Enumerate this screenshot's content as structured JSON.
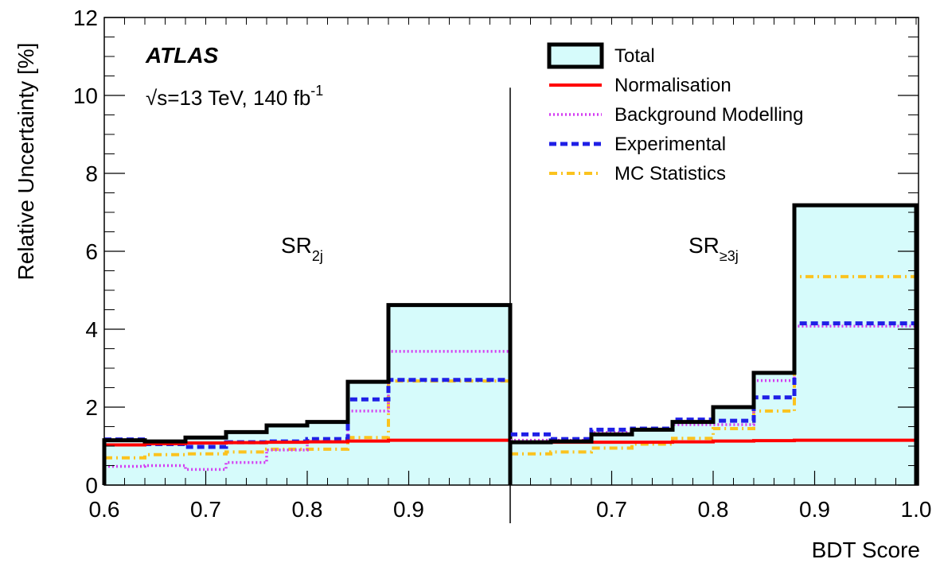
{
  "chart_data": {
    "type": "histogram",
    "experiment": "ATLAS",
    "energy_label": "√s=13 TeV, 140 fb",
    "energy_sup": "-1",
    "xlabel": "BDT Score",
    "ylabel": "Relative Uncertainty [%]",
    "ylim": [
      0,
      12
    ],
    "yticks": [
      "0",
      "2",
      "4",
      "6",
      "8",
      "10",
      "12"
    ],
    "grid": false,
    "legend_position": "top-right",
    "regions": [
      {
        "label": "SR",
        "sub": "2j",
        "xticks": [
          "0.6",
          "0.7",
          "0.8",
          "0.9"
        ],
        "bin_edges": [
          0.6,
          0.64,
          0.68,
          0.72,
          0.76,
          0.8,
          0.84,
          0.88,
          1.0
        ],
        "series": {
          "total": [
            1.15,
            1.12,
            1.22,
            1.36,
            1.53,
            1.62,
            2.65,
            4.62
          ],
          "normalisation": [
            1.03,
            1.06,
            1.08,
            1.09,
            1.1,
            1.11,
            1.13,
            1.15
          ],
          "background_modelling": [
            0.48,
            0.5,
            0.4,
            0.58,
            0.9,
            1.12,
            1.9,
            3.43
          ],
          "experimental": [
            1.17,
            1.05,
            0.98,
            1.1,
            1.12,
            1.18,
            2.2,
            2.7
          ],
          "mc_statistics": [
            0.7,
            0.78,
            0.8,
            0.85,
            0.92,
            0.92,
            1.22,
            2.67
          ]
        }
      },
      {
        "label": "SR",
        "sub": "≥3j",
        "xticks": [
          "0.7",
          "0.8",
          "0.9",
          "1.0"
        ],
        "bin_edges": [
          0.6,
          0.64,
          0.68,
          0.72,
          0.76,
          0.8,
          0.84,
          0.88,
          1.0
        ],
        "series": {
          "total": [
            1.1,
            1.12,
            1.3,
            1.42,
            1.62,
            2.0,
            2.88,
            7.18
          ],
          "normalisation": [
            1.1,
            1.1,
            1.1,
            1.1,
            1.11,
            1.13,
            1.14,
            1.15
          ],
          "background_modelling": [
            1.15,
            1.15,
            1.35,
            1.42,
            1.55,
            1.55,
            2.68,
            4.08
          ],
          "experimental": [
            1.3,
            1.18,
            1.42,
            1.45,
            1.68,
            1.65,
            2.25,
            4.15
          ],
          "mc_statistics": [
            0.8,
            0.85,
            0.95,
            1.05,
            1.2,
            1.45,
            1.9,
            5.35
          ]
        }
      }
    ],
    "legend": [
      {
        "key": "total",
        "label": "Total",
        "color": "#000000",
        "fill": "#d6fbfb",
        "style": "box"
      },
      {
        "key": "normalisation",
        "label": "Normalisation",
        "color": "#ff0000",
        "style": "solid"
      },
      {
        "key": "background_modelling",
        "label": "Background Modelling",
        "color": "#d43bf2",
        "style": "dotted"
      },
      {
        "key": "experimental",
        "label": "Experimental",
        "color": "#1f1fe6",
        "style": "dashed"
      },
      {
        "key": "mc_statistics",
        "label": "MC Statistics",
        "color": "#fbc31e",
        "style": "dashdot"
      }
    ]
  }
}
